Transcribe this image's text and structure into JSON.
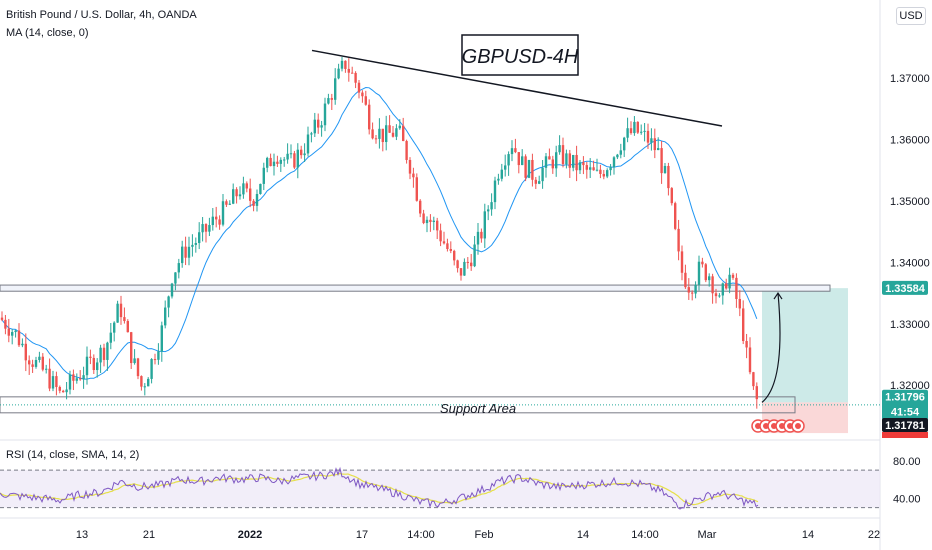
{
  "header": {
    "symbol_line": "British Pound / U.S. Dollar, 4h, OANDA",
    "indicator_line": "MA (14, close, 0)",
    "currency_button": "USD"
  },
  "rsi_panel": {
    "label": "RSI (14, close, SMA, 14, 2)",
    "ticks": [
      "80.00",
      "40.00"
    ]
  },
  "colors": {
    "up": "#26a69a",
    "down": "#ef5350",
    "ma": "#2196f3",
    "rsi": "#7e57c2",
    "rsi_ma": "#e6e04a",
    "target_zone": "#b2dfdb",
    "stop_zone": "#f8c8c8",
    "tag_green": "#26a69a",
    "tag_dark": "#131722",
    "tag_red": "#ef3b39"
  },
  "chart_data": {
    "type": "candlestick",
    "title": "GBPUSD-4H",
    "yticks": [
      "1.37000",
      "1.36000",
      "1.35000",
      "1.34000",
      "1.33000",
      "1.32000"
    ],
    "ytick_values": [
      1.37,
      1.36,
      1.35,
      1.34,
      1.33,
      1.32
    ],
    "ylim": [
      1.3114,
      1.3819
    ],
    "xticks": [
      "13",
      "21",
      "2022",
      "17",
      "14:00",
      "Feb",
      "14",
      "14:00",
      "Mar",
      "14",
      "22"
    ],
    "price_tags": {
      "resistance": "1.33584",
      "current": "1.31796",
      "countdown": "41:54",
      "low": "1.31781"
    },
    "annotations": {
      "support_label": "Support Area"
    },
    "key_levels": {
      "resistance_zone": [
        1.3353,
        1.3363
      ],
      "support_zone": [
        1.3155,
        1.3181
      ],
      "trendline": [
        [
          1.3745
        ],
        [
          1.3622
        ]
      ],
      "long_position": {
        "entry": 1.3172,
        "target": 1.3358,
        "stop": 1.3122
      }
    },
    "price_path": [
      [
        0,
        1.331
      ],
      [
        15,
        1.3285
      ],
      [
        30,
        1.3245
      ],
      [
        45,
        1.322
      ],
      [
        60,
        1.3185
      ],
      [
        75,
        1.321
      ],
      [
        90,
        1.3235
      ],
      [
        105,
        1.326
      ],
      [
        120,
        1.333
      ],
      [
        132,
        1.3245
      ],
      [
        142,
        1.3195
      ],
      [
        152,
        1.324
      ],
      [
        162,
        1.329
      ],
      [
        172,
        1.338
      ],
      [
        185,
        1.342
      ],
      [
        200,
        1.344
      ],
      [
        215,
        1.347
      ],
      [
        228,
        1.349
      ],
      [
        240,
        1.352
      ],
      [
        252,
        1.35
      ],
      [
        262,
        1.354
      ],
      [
        275,
        1.358
      ],
      [
        290,
        1.356
      ],
      [
        305,
        1.359
      ],
      [
        320,
        1.363
      ],
      [
        335,
        1.369
      ],
      [
        345,
        1.3725
      ],
      [
        352,
        1.3705
      ],
      [
        360,
        1.368
      ],
      [
        372,
        1.362
      ],
      [
        385,
        1.3605
      ],
      [
        398,
        1.3615
      ],
      [
        410,
        1.356
      ],
      [
        422,
        1.348
      ],
      [
        435,
        1.346
      ],
      [
        448,
        1.342
      ],
      [
        458,
        1.338
      ],
      [
        468,
        1.34
      ],
      [
        480,
        1.344
      ],
      [
        490,
        1.35
      ],
      [
        500,
        1.356
      ],
      [
        512,
        1.3595
      ],
      [
        522,
        1.356
      ],
      [
        535,
        1.354
      ],
      [
        548,
        1.356
      ],
      [
        560,
        1.3575
      ],
      [
        572,
        1.356
      ],
      [
        585,
        1.355
      ],
      [
        598,
        1.354
      ],
      [
        610,
        1.3565
      ],
      [
        622,
        1.36
      ],
      [
        635,
        1.3615
      ],
      [
        648,
        1.36
      ],
      [
        658,
        1.358
      ],
      [
        665,
        1.354
      ],
      [
        672,
        1.348
      ],
      [
        680,
        1.339
      ],
      [
        690,
        1.336
      ],
      [
        700,
        1.339
      ],
      [
        710,
        1.338
      ],
      [
        720,
        1.333
      ],
      [
        728,
        1.3385
      ],
      [
        735,
        1.335
      ],
      [
        742,
        1.33
      ],
      [
        748,
        1.323
      ],
      [
        754,
        1.3185
      ],
      [
        758,
        1.317
      ]
    ],
    "rsi_ylim": [
      20,
      100
    ],
    "rsi_levels": [
      70,
      30
    ],
    "rsi_ticks": [
      80,
      40
    ],
    "rsi_path": [
      [
        0,
        45
      ],
      [
        20,
        42
      ],
      [
        40,
        40
      ],
      [
        60,
        38
      ],
      [
        80,
        44
      ],
      [
        100,
        46
      ],
      [
        120,
        58
      ],
      [
        140,
        52
      ],
      [
        160,
        54
      ],
      [
        180,
        60
      ],
      [
        200,
        58
      ],
      [
        220,
        62
      ],
      [
        240,
        60
      ],
      [
        260,
        62
      ],
      [
        280,
        58
      ],
      [
        300,
        62
      ],
      [
        320,
        64
      ],
      [
        340,
        68
      ],
      [
        360,
        55
      ],
      [
        380,
        50
      ],
      [
        400,
        44
      ],
      [
        420,
        36
      ],
      [
        440,
        34
      ],
      [
        460,
        40
      ],
      [
        480,
        48
      ],
      [
        500,
        58
      ],
      [
        520,
        62
      ],
      [
        540,
        55
      ],
      [
        560,
        52
      ],
      [
        580,
        54
      ],
      [
        600,
        56
      ],
      [
        620,
        58
      ],
      [
        640,
        55
      ],
      [
        660,
        48
      ],
      [
        680,
        32
      ],
      [
        700,
        40
      ],
      [
        720,
        46
      ],
      [
        740,
        38
      ],
      [
        758,
        33
      ]
    ]
  }
}
